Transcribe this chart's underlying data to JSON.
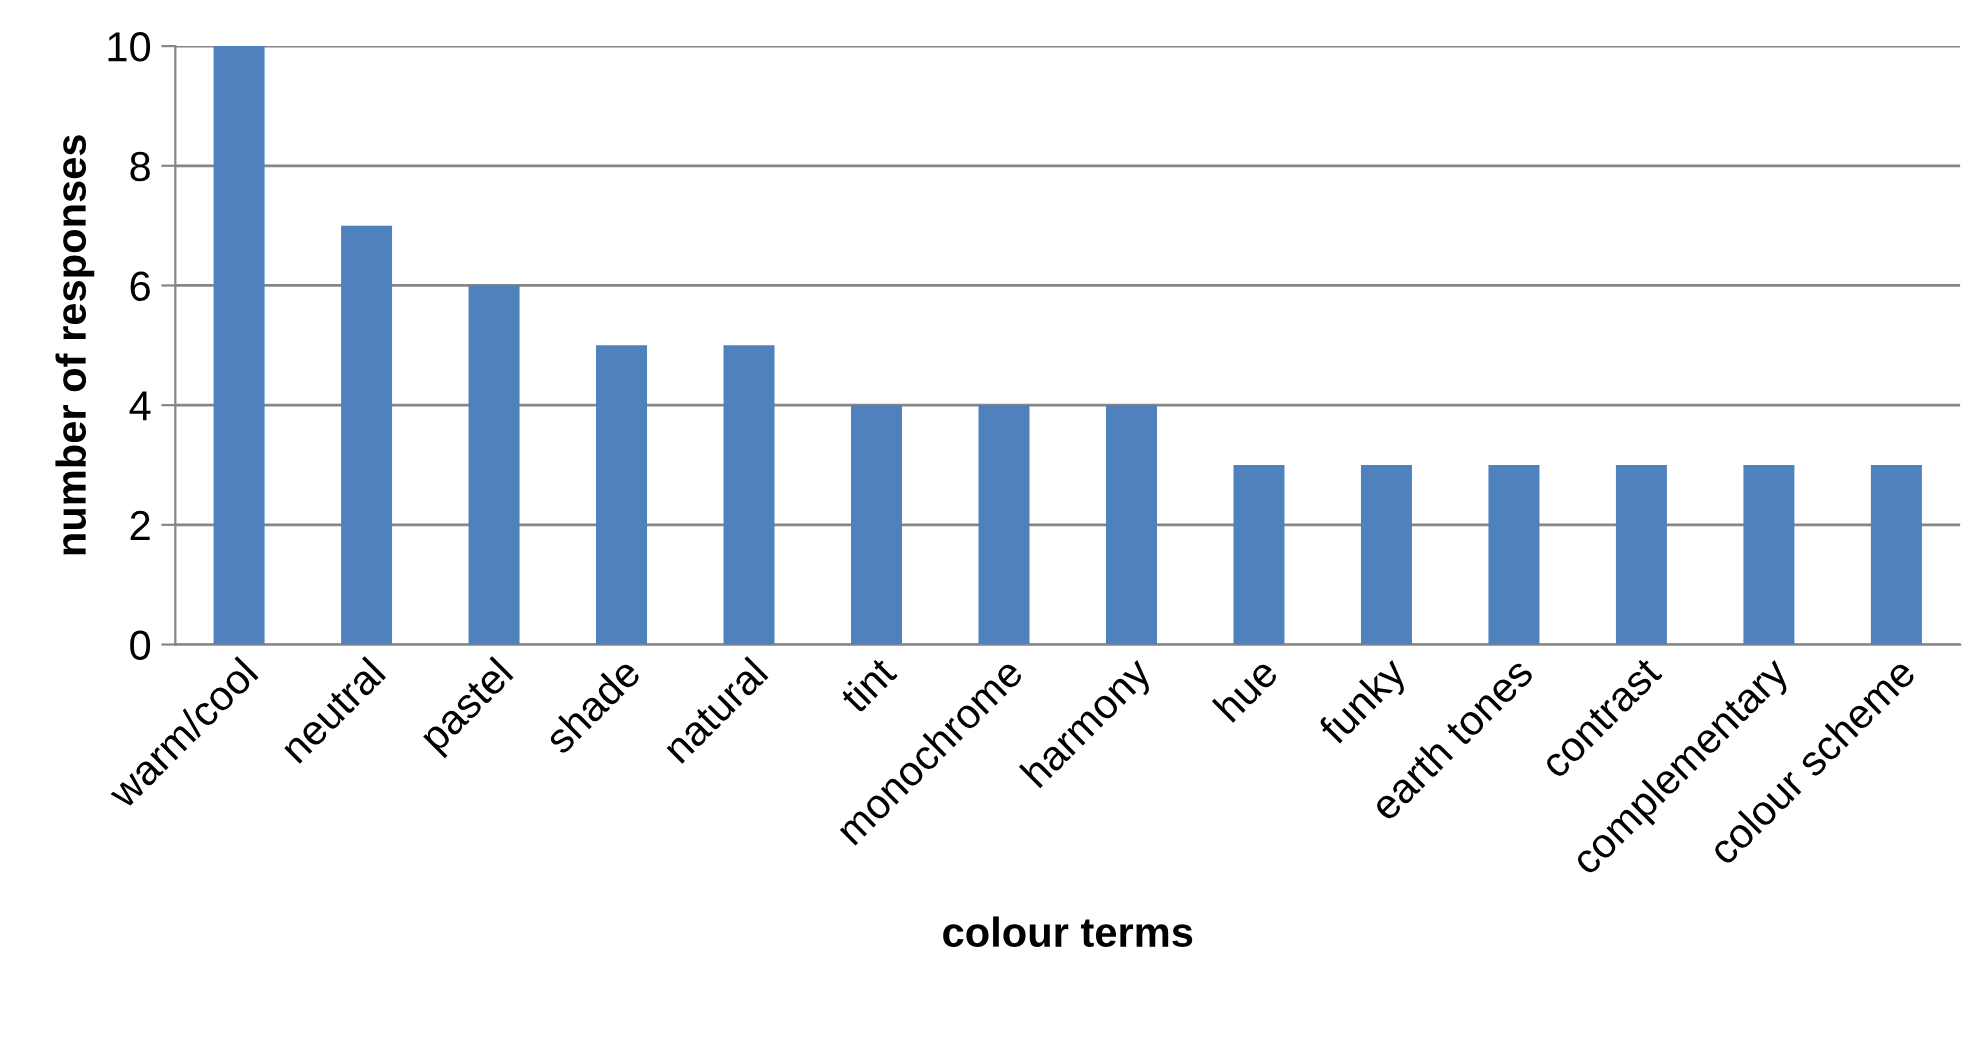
{
  "chart_data": {
    "type": "bar",
    "xlabel": "colour terms",
    "ylabel": "number of responses",
    "categories": [
      "warm/cool",
      "neutral",
      "pastel",
      "shade",
      "natural",
      "tint",
      "monochrome",
      "harmony",
      "hue",
      "funky",
      "earth tones",
      "contrast",
      "complementary",
      "colour scheme"
    ],
    "values": [
      10,
      7,
      6,
      5,
      5,
      4,
      4,
      4,
      3,
      3,
      3,
      3,
      3,
      3
    ],
    "color": "#4f81bd",
    "ylim": [
      0,
      10
    ],
    "yticks": [
      0,
      2,
      4,
      6,
      8,
      10
    ],
    "grid": "y",
    "legend": false
  }
}
